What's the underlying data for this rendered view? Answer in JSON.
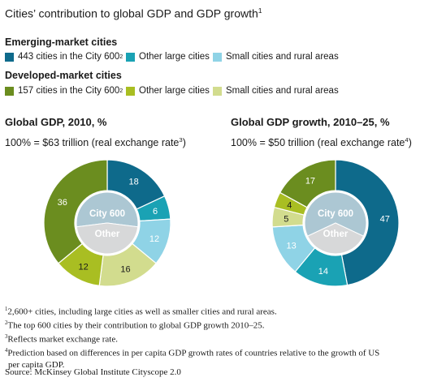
{
  "title": "Cities’ contribution to global GDP and GDP growth",
  "title_note": "1",
  "groups": [
    {
      "heading": "Emerging-market cities",
      "items": [
        {
          "label": "443 cities in the City 600",
          "sup": "2",
          "color": "#0e6a8b"
        },
        {
          "label": "Other large cities",
          "sup": "",
          "color": "#1aa2b4"
        },
        {
          "label": "Small cities and rural areas",
          "sup": "",
          "color": "#8fd3e6"
        }
      ]
    },
    {
      "heading": "Developed-market cities",
      "items": [
        {
          "label": "157 cities in the City 600",
          "sup": "2",
          "color": "#6b8d1f"
        },
        {
          "label": "Other large cities",
          "sup": "",
          "color": "#a9be22"
        },
        {
          "label": "Small cities and rural areas",
          "sup": "",
          "color": "#d2dc8e"
        }
      ]
    }
  ],
  "inner_labels": {
    "top": "City 600",
    "bottom": "Other"
  },
  "footnotes": [
    {
      "mark": "1",
      "text": "2,600+ cities, including large cities as well as smaller cities and rural areas."
    },
    {
      "mark": "2",
      "text": "The top 600 cities by their contribution to global GDP growth 2010–25."
    },
    {
      "mark": "3",
      "text": "Reflects market exchange rate."
    },
    {
      "mark": "4",
      "text": "Prediction based on differences in per capita GDP growth rates of countries relative to the growth of US"
    },
    {
      "mark": "",
      "text": "per capita GDP."
    }
  ],
  "source": "Source: McKinsey Global Institute Cityscope 2.0",
  "chart_data": [
    {
      "type": "pie",
      "title": "Global GDP, 2010, %",
      "subtitle_pre": "100% = $63 trillion (real exchange rate",
      "subtitle_note": "3",
      "subtitle_post": ")",
      "categories": [
        "Emerging-market cities: 443 cities in the City 600",
        "Emerging-market cities: Other large cities",
        "Emerging-market cities: Small cities and rural areas",
        "Developed-market cities: Small cities and rural areas",
        "Developed-market cities: Other large cities",
        "Developed-market cities: 157 cities in the City 600"
      ],
      "values": [
        18,
        6,
        12,
        16,
        12,
        36
      ],
      "colors": [
        "#0e6a8b",
        "#1aa2b4",
        "#8fd3e6",
        "#d2dc8e",
        "#a9be22",
        "#6b8d1f"
      ],
      "label_colors": [
        "#ffffff",
        "#ffffff",
        "#ffffff",
        "#1a1a1a",
        "#1a1a1a",
        "#ffffff"
      ],
      "inner": {
        "city600_share": 54,
        "colors": [
          "#acc7d3",
          "#d7d8d9"
        ]
      }
    },
    {
      "type": "pie",
      "title": "Global GDP growth, 2010–25, %",
      "subtitle_pre": "100% = $50 trillion (real exchange rate",
      "subtitle_note": "4",
      "subtitle_post": ")",
      "categories": [
        "Emerging-market cities: 443 cities in the City 600",
        "Emerging-market cities: Other large cities",
        "Emerging-market cities: Small cities and rural areas",
        "Developed-market cities: Small cities and rural areas",
        "Developed-market cities: Other large cities",
        "Developed-market cities: 157 cities in the City 600"
      ],
      "values": [
        47,
        14,
        13,
        5,
        4,
        17
      ],
      "colors": [
        "#0e6a8b",
        "#1aa2b4",
        "#8fd3e6",
        "#d2dc8e",
        "#a9be22",
        "#6b8d1f"
      ],
      "label_colors": [
        "#ffffff",
        "#ffffff",
        "#ffffff",
        "#1a1a1a",
        "#1a1a1a",
        "#ffffff"
      ],
      "inner": {
        "city600_share": 64,
        "colors": [
          "#acc7d3",
          "#d7d8d9"
        ]
      }
    }
  ]
}
